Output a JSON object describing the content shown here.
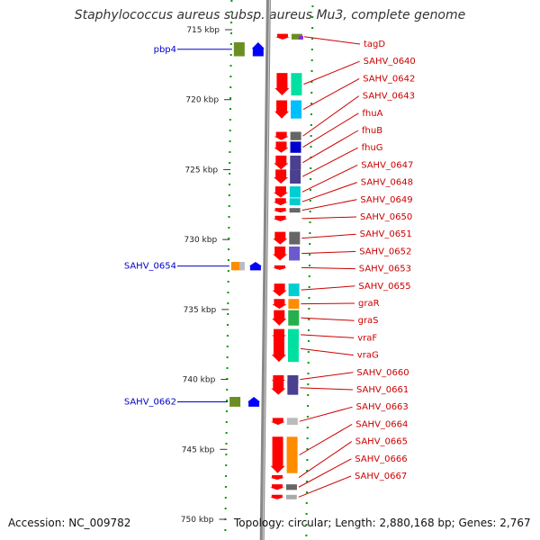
{
  "title": "Staphylococcus aureus subsp. aureus Mu3, complete genome",
  "footer": {
    "accession": "Accession: NC_009782",
    "info": "Topology: circular; Length: 2,880,168 bp; Genes: 2,767"
  },
  "ruler": [
    "715 kbp",
    "720 kbp",
    "725 kbp",
    "730 kbp",
    "735 kbp",
    "740 kbp",
    "745 kbp",
    "750 kbp"
  ],
  "colors": {
    "forward_label": "#0000cc",
    "reverse_label": "#cc0000",
    "gene": "#ff0000",
    "forward_gene": "#0000ff",
    "backbone": "#888888",
    "tick": "#009900"
  },
  "reverse_genes": [
    {
      "label": "tagD",
      "kbp": 715.5,
      "len": 0.4,
      "cog": "#6b8e23",
      "cog2": "#8a2be2"
    },
    {
      "label": "SAHV_0640",
      "kbp": 718.9,
      "len": 1.6,
      "cog": "#00e0a0"
    },
    {
      "label": "SAHV_0642",
      "kbp": 720.7,
      "len": 1.3,
      "cog": "#00bfff"
    },
    {
      "label": "SAHV_0643",
      "kbp": 722.6,
      "len": 0.6,
      "cog": "#666666"
    },
    {
      "label": "fhuA",
      "kbp": 723.4,
      "len": 0.8,
      "cog": "#0000cc"
    },
    {
      "label": "fhuB",
      "kbp": 724.5,
      "len": 1.0,
      "cog": "#4b3f8f"
    },
    {
      "label": "fhuG",
      "kbp": 725.5,
      "len": 1.0,
      "cog": "#4b3f8f"
    },
    {
      "label": "SAHV_0647",
      "kbp": 726.6,
      "len": 0.8,
      "cog": "#00ced1"
    },
    {
      "label": "SAHV_0648",
      "kbp": 727.3,
      "len": 0.5,
      "cog": "#00ced1"
    },
    {
      "label": "SAHV_0649",
      "kbp": 727.9,
      "len": 0.3,
      "cog": "#666666"
    },
    {
      "label": "SAHV_0650",
      "kbp": 728.5,
      "len": 0.4,
      "cog": ""
    },
    {
      "label": "SAHV_0651",
      "kbp": 729.9,
      "len": 0.9,
      "cog": "#666666"
    },
    {
      "label": "SAHV_0652",
      "kbp": 731.0,
      "len": 1.0,
      "cog": "#6a5acd"
    },
    {
      "label": "SAHV_0653",
      "kbp": 732.0,
      "len": 0.3,
      "cog": ""
    },
    {
      "label": "SAHV_0655",
      "kbp": 733.6,
      "len": 0.9,
      "cog": "#00ced1"
    },
    {
      "label": "graR",
      "kbp": 734.6,
      "len": 0.7,
      "cog": "#ff8c00"
    },
    {
      "label": "graS",
      "kbp": 735.6,
      "len": 1.1,
      "cog": "#22b14c"
    },
    {
      "label": "vraF",
      "kbp": 736.8,
      "len": 0.8,
      "cog": "#00e0a0"
    },
    {
      "label": "vraG",
      "kbp": 737.8,
      "len": 1.9,
      "cog": "#00e0a0"
    },
    {
      "label": "SAHV_0660",
      "kbp": 740.0,
      "len": 0.6,
      "cog": "#4b3f8f"
    },
    {
      "label": "SAHV_0661",
      "kbp": 740.6,
      "len": 1.0,
      "cog": "#4b3f8f"
    },
    {
      "label": "SAHV_0663",
      "kbp": 743.0,
      "len": 0.5,
      "cog": "#bbbbbb"
    },
    {
      "label": "SAHV_0664",
      "kbp": 745.4,
      "len": 2.6,
      "cog": "#ff8c00"
    },
    {
      "label": "SAHV_0665",
      "kbp": 747.0,
      "len": 0.3,
      "cog": ""
    },
    {
      "label": "SAHV_0666",
      "kbp": 747.7,
      "len": 0.4,
      "cog": "#666666"
    },
    {
      "label": "SAHV_0667",
      "kbp": 748.4,
      "len": 0.3,
      "cog": "#aaaaaa"
    }
  ],
  "forward_genes": [
    {
      "label": "pbp4",
      "kbp": 716.4,
      "len": 1.0,
      "cog": "#6b8e23"
    },
    {
      "label": "SAHV_0654",
      "kbp": 731.9,
      "len": 0.6,
      "cog": "#ff8c00",
      "cog2": "#bbbbbb"
    },
    {
      "label": "SAHV_0662",
      "kbp": 741.6,
      "len": 0.7,
      "cog": "#6b8e23"
    }
  ]
}
